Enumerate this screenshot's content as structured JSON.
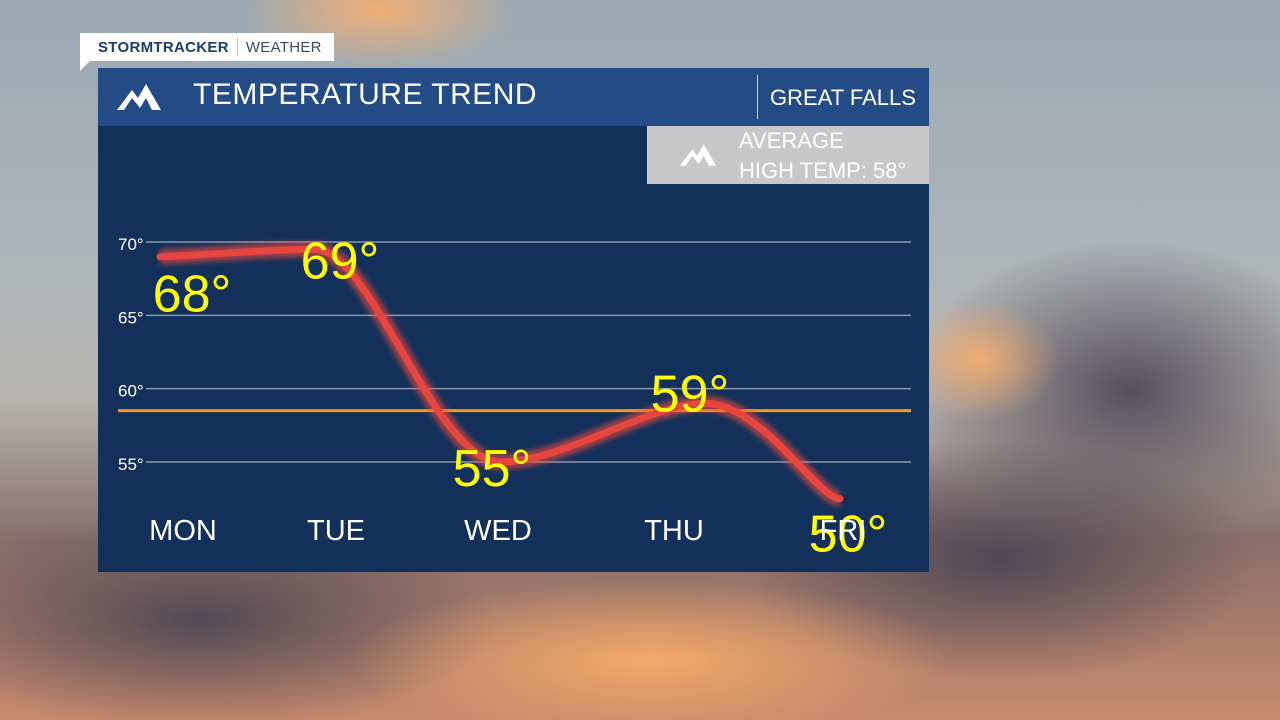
{
  "brand": {
    "name": "STORMTRACKER",
    "section": "WEATHER"
  },
  "header": {
    "title": "TEMPERATURE TREND",
    "location": "GREAT FALLS"
  },
  "average": {
    "line1": "AVERAGE",
    "line2": "HIGH TEMP: 58°",
    "value": 58.5
  },
  "colors": {
    "panel": "#13305a",
    "header": "#234b86",
    "curve": "#e8453f",
    "labels": "#ffff00",
    "average_line": "#f39c12"
  },
  "chart_data": {
    "type": "line",
    "categories": [
      "MON",
      "TUE",
      "WED",
      "THU",
      "FRI"
    ],
    "values": [
      68,
      69,
      55,
      59,
      50
    ],
    "value_labels": [
      "68°",
      "69°",
      "55°",
      "59°",
      "50°"
    ],
    "yticks": [
      70,
      65,
      60,
      55
    ],
    "ytick_labels": [
      "70°",
      "65°",
      "60°",
      "55°"
    ],
    "ylim": [
      50,
      70
    ],
    "grid": true,
    "curve_values": [
      69,
      69.5,
      55,
      59,
      52.5
    ]
  }
}
